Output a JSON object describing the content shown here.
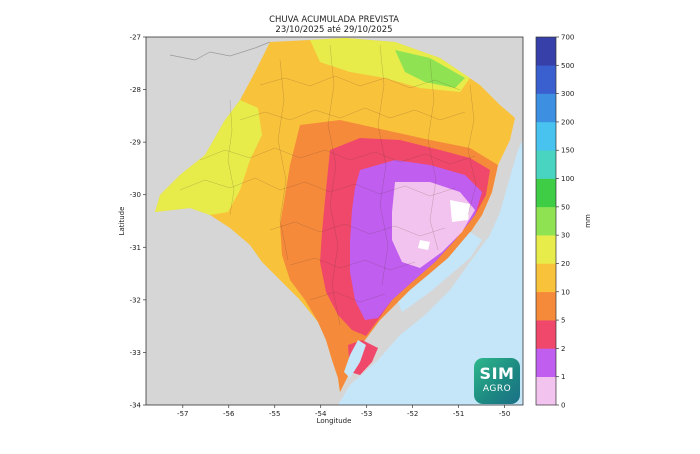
{
  "title": "CHUVA ACUMULADA PREVISTA",
  "subtitle": "23/10/2025 até 29/10/2025",
  "x_axis": {
    "label": "Longitude",
    "range": [
      -57.8,
      -49.6
    ],
    "ticks": [
      "-57",
      "-56",
      "-55",
      "-54",
      "-53",
      "-52",
      "-51",
      "-50"
    ],
    "tick_values": [
      -57,
      -56,
      -55,
      -54,
      -53,
      -52,
      -51,
      -50
    ]
  },
  "y_axis": {
    "label": "Latitude",
    "range": [
      -34,
      -27
    ],
    "ticks": [
      "-27",
      "-28",
      "-29",
      "-30",
      "-31",
      "-32",
      "-33",
      "-34"
    ],
    "tick_values": [
      -27,
      -28,
      -29,
      -30,
      -31,
      -32,
      -33,
      -34
    ]
  },
  "colorbar": {
    "unit": "mm",
    "levels": [
      "0",
      "1",
      "2",
      "5",
      "10",
      "20",
      "30",
      "50",
      "100",
      "150",
      "200",
      "300",
      "500",
      "700"
    ],
    "colors": [
      "#ffffff",
      "#f2c3ee",
      "#c05ef0",
      "#f0486a",
      "#f58a3b",
      "#f9c23b",
      "#e7ec4b",
      "#8fe352",
      "#3fcd45",
      "#48d4c0",
      "#48c3ef",
      "#3d8fe1",
      "#3a5fcf",
      "#3640a8"
    ]
  },
  "map_colors": {
    "ocean": "#c4e6f8",
    "neighbor_land": "#d6d6d6",
    "plot_frame": "#333333"
  },
  "logo": {
    "line1": "SIM",
    "line2": "AGRO"
  }
}
